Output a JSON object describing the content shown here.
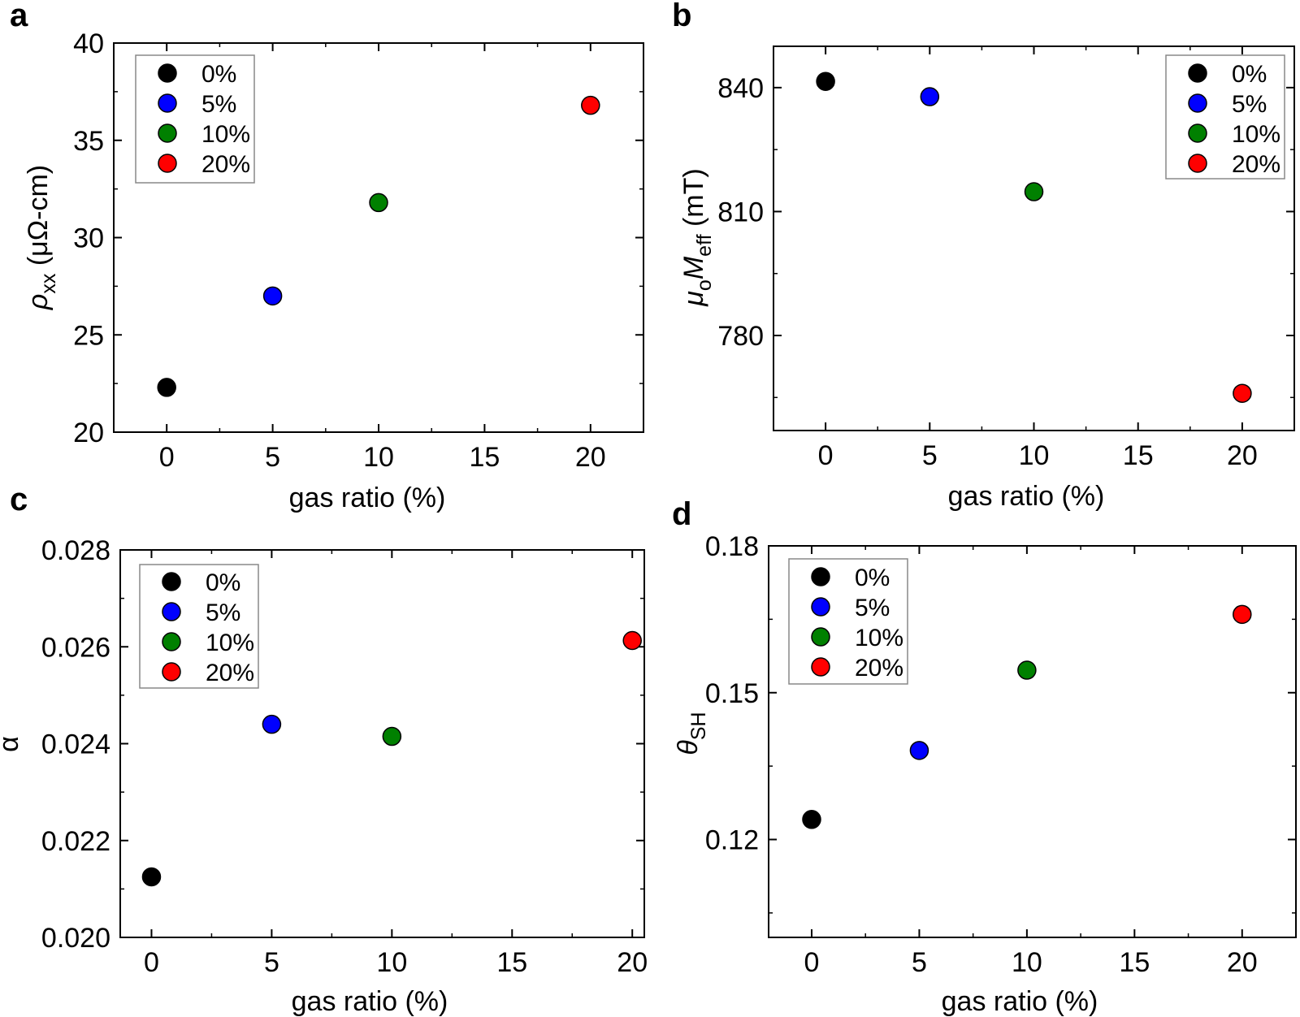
{
  "figure": {
    "legend_entries": [
      "0%",
      "5%",
      "10%",
      "20%"
    ],
    "colors": {
      "0%": "#000000",
      "5%": "#0000ff",
      "10%": "#008000",
      "20%": "#ff0000"
    }
  },
  "chart_data": [
    {
      "panel": "a",
      "type": "scatter",
      "xlabel": "gas ratio (%)",
      "ylabel": "ρxx (μΩ-cm)",
      "ylabel_parts": {
        "symbol": "ρ",
        "sub": "xx",
        "rest": " (μΩ-cm)"
      },
      "xlim": [
        -2.5,
        22.5
      ],
      "ylim": [
        20,
        40
      ],
      "xticks": [
        0,
        5,
        10,
        15,
        20
      ],
      "yticks": [
        20,
        25,
        30,
        35,
        40
      ],
      "ytick_labels": [
        "20",
        "25",
        "30",
        "35",
        "40"
      ],
      "legend": "top-left",
      "series": [
        {
          "name": "0%",
          "color": "#000000",
          "x": [
            0
          ],
          "y": [
            22.3
          ]
        },
        {
          "name": "5%",
          "color": "#0000ff",
          "x": [
            5
          ],
          "y": [
            27.0
          ]
        },
        {
          "name": "10%",
          "color": "#008000",
          "x": [
            10
          ],
          "y": [
            31.8
          ]
        },
        {
          "name": "20%",
          "color": "#ff0000",
          "x": [
            20
          ],
          "y": [
            36.8
          ]
        }
      ]
    },
    {
      "panel": "b",
      "type": "scatter",
      "xlabel": "gas ratio (%)",
      "ylabel": "μoMeff (mT)",
      "ylabel_parts": {
        "symbol": "μ",
        "sub": "o",
        "symbol2": "M",
        "sub2": "eff",
        "rest": " (mT)"
      },
      "xlim": [
        -2.5,
        22.5
      ],
      "ylim": [
        757,
        850
      ],
      "xticks": [
        0,
        5,
        10,
        15,
        20
      ],
      "yticks": [
        780,
        810,
        840
      ],
      "ytick_labels": [
        "780",
        "810",
        "840"
      ],
      "legend": "top-right",
      "series": [
        {
          "name": "0%",
          "color": "#000000",
          "x": [
            0
          ],
          "y": [
            841.5
          ]
        },
        {
          "name": "5%",
          "color": "#0000ff",
          "x": [
            5
          ],
          "y": [
            837.8
          ]
        },
        {
          "name": "10%",
          "color": "#008000",
          "x": [
            10
          ],
          "y": [
            814.8
          ]
        },
        {
          "name": "20%",
          "color": "#ff0000",
          "x": [
            20
          ],
          "y": [
            766.0
          ]
        }
      ]
    },
    {
      "panel": "c",
      "type": "scatter",
      "xlabel": "gas ratio (%)",
      "ylabel": "α",
      "ylabel_parts": {
        "symbol": "α"
      },
      "xlim": [
        -1.3,
        20.5
      ],
      "ylim": [
        0.02,
        0.028
      ],
      "xticks": [
        0,
        5,
        10,
        15,
        20
      ],
      "yticks": [
        0.02,
        0.022,
        0.024,
        0.026,
        0.028
      ],
      "ytick_labels": [
        "0.020",
        "0.022",
        "0.024",
        "0.026",
        "0.028"
      ],
      "legend": "top-left",
      "series": [
        {
          "name": "0%",
          "color": "#000000",
          "x": [
            0
          ],
          "y": [
            0.02125
          ]
        },
        {
          "name": "5%",
          "color": "#0000ff",
          "x": [
            5
          ],
          "y": [
            0.0244
          ]
        },
        {
          "name": "10%",
          "color": "#008000",
          "x": [
            10
          ],
          "y": [
            0.02415
          ]
        },
        {
          "name": "20%",
          "color": "#ff0000",
          "x": [
            20
          ],
          "y": [
            0.02613
          ]
        }
      ]
    },
    {
      "panel": "d",
      "type": "scatter",
      "xlabel": "gas ratio (%)",
      "ylabel": "θSH",
      "ylabel_parts": {
        "symbol": "θ",
        "sub": "SH"
      },
      "xlim": [
        -2.0,
        22.5
      ],
      "ylim": [
        0.1,
        0.18
      ],
      "xticks": [
        0,
        5,
        10,
        15,
        20
      ],
      "yticks": [
        0.12,
        0.15,
        0.18
      ],
      "ytick_labels": [
        "0.12",
        "0.15",
        "0.18"
      ],
      "legend": "top-left",
      "series": [
        {
          "name": "0%",
          "color": "#000000",
          "x": [
            0
          ],
          "y": [
            0.1241
          ]
        },
        {
          "name": "5%",
          "color": "#0000ff",
          "x": [
            5
          ],
          "y": [
            0.1382
          ]
        },
        {
          "name": "10%",
          "color": "#008000",
          "x": [
            10
          ],
          "y": [
            0.1546
          ]
        },
        {
          "name": "20%",
          "color": "#ff0000",
          "x": [
            20
          ],
          "y": [
            0.166
          ]
        }
      ]
    }
  ]
}
